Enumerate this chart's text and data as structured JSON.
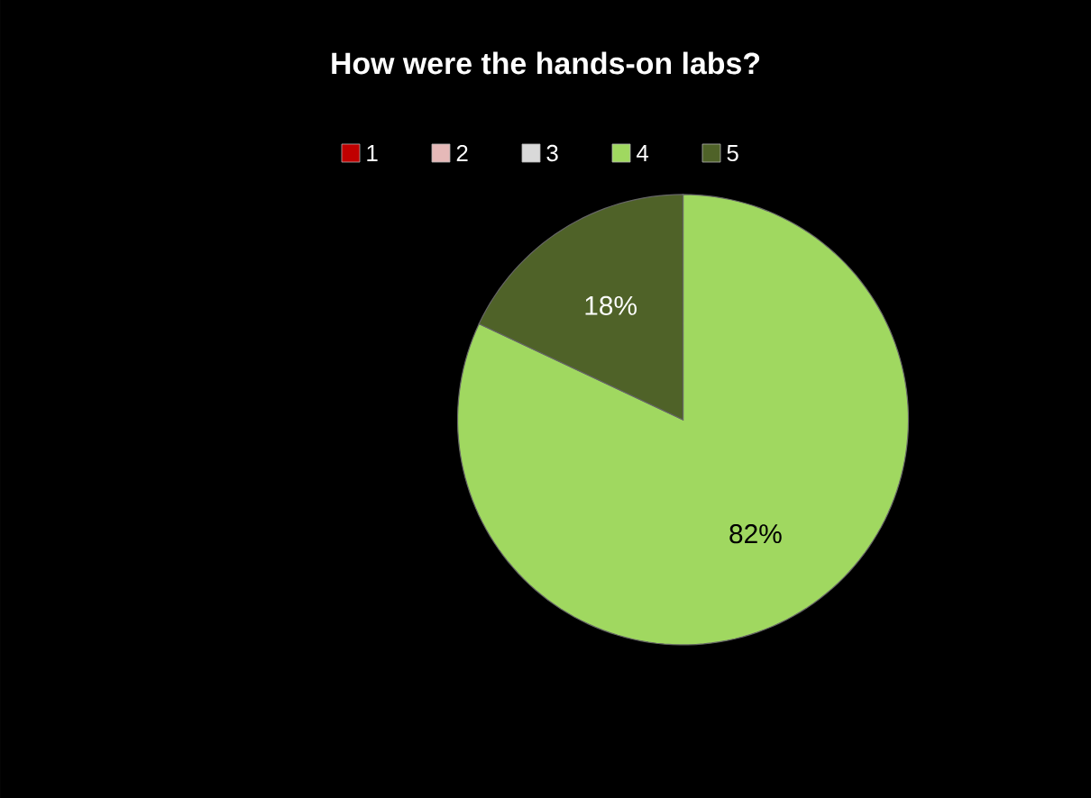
{
  "chart_data": {
    "type": "pie",
    "title": "How were the hands-on labs?",
    "categories": [
      "1",
      "2",
      "3",
      "4",
      "5"
    ],
    "values": [
      0,
      0,
      0,
      82,
      18
    ],
    "colors": [
      "#c00000",
      "#e6b9b8",
      "#d9d9d9",
      "#a0d860",
      "#4f6228"
    ],
    "value_labels": [
      null,
      null,
      null,
      "82%",
      "18%"
    ],
    "legend": "top"
  }
}
